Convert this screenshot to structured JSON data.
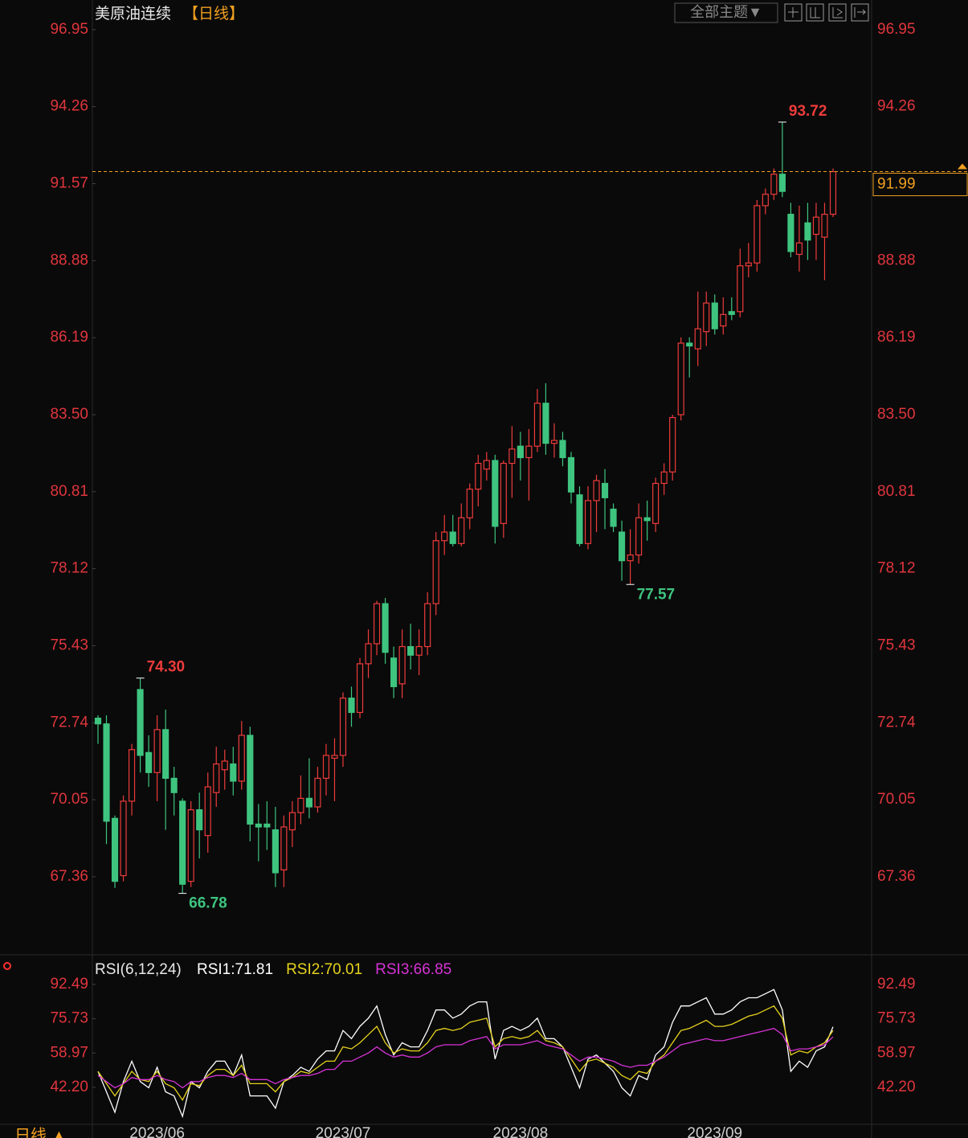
{
  "chart_data": [
    {
      "type": "candlestick",
      "title": "美原油连续",
      "period": "【日线】",
      "categories": [
        null,
        null,
        null,
        null,
        null,
        null,
        null,
        "2023/06",
        null,
        null,
        null,
        null,
        null,
        null,
        null,
        null,
        null,
        null,
        null,
        null,
        null,
        null,
        null,
        null,
        null,
        null,
        null,
        null,
        null,
        "2023/07",
        null,
        null,
        null,
        null,
        null,
        null,
        null,
        null,
        null,
        null,
        null,
        null,
        null,
        null,
        null,
        null,
        null,
        null,
        null,
        null,
        "2023/08",
        null,
        null,
        null,
        null,
        null,
        null,
        null,
        null,
        null,
        null,
        null,
        null,
        null,
        null,
        null,
        null,
        null,
        null,
        null,
        null,
        null,
        null,
        "2023/09",
        null,
        null,
        null,
        null,
        null,
        null,
        null,
        null,
        null,
        null,
        null,
        null,
        null,
        null
      ],
      "open": [
        72.9,
        72.7,
        69.4,
        67.4,
        70.0,
        73.9,
        71.7,
        71.0,
        72.5,
        70.8,
        70.0,
        67.2,
        69.7,
        68.8,
        70.3,
        71.1,
        71.3,
        70.7,
        72.3,
        69.2,
        69.2,
        69.0,
        67.6,
        69.0,
        69.6,
        70.1,
        69.8,
        70.8,
        71.5,
        71.6,
        73.6,
        73.1,
        74.8,
        75.5,
        76.9,
        75.0,
        74.1,
        75.4,
        75.1,
        75.4,
        76.9,
        79.1,
        79.4,
        79.0,
        79.9,
        80.9,
        81.6,
        81.9,
        79.7,
        81.8,
        82.4,
        82.0,
        82.4,
        83.9,
        82.5,
        82.6,
        82.0,
        80.7,
        79.0,
        80.5,
        81.1,
        80.2,
        79.4,
        78.4,
        78.6,
        79.9,
        79.7,
        81.1,
        81.5,
        83.5,
        86.0,
        85.8,
        86.4,
        87.4,
        86.6,
        87.1,
        87.1,
        88.7,
        88.8,
        90.8,
        91.2,
        91.9,
        90.5,
        89.1,
        90.2,
        89.8,
        89.7,
        90.5
      ],
      "high": [
        73.0,
        73.0,
        69.5,
        70.2,
        72.0,
        74.3,
        72.3,
        73.0,
        73.2,
        71.2,
        70.1,
        70.0,
        70.3,
        71.0,
        71.9,
        71.8,
        71.9,
        72.8,
        72.6,
        69.9,
        70.0,
        69.8,
        69.5,
        70.0,
        70.9,
        71.5,
        71.2,
        72.0,
        72.2,
        73.8,
        74.0,
        75.0,
        76.0,
        77.0,
        77.1,
        75.4,
        76.0,
        76.2,
        76.0,
        77.3,
        79.4,
        80.0,
        80.0,
        80.4,
        81.1,
        82.1,
        82.2,
        82.1,
        81.9,
        83.1,
        82.9,
        83.0,
        84.4,
        84.6,
        83.2,
        82.9,
        82.2,
        81.0,
        81.0,
        81.4,
        81.6,
        80.4,
        79.8,
        79.5,
        80.4,
        80.5,
        81.3,
        81.8,
        83.5,
        86.2,
        86.2,
        87.8,
        87.8,
        87.7,
        87.6,
        87.6,
        89.3,
        89.5,
        91.0,
        91.4,
        92.1,
        93.72,
        90.9,
        90.8,
        90.9,
        90.9,
        90.9,
        92.1
      ],
      "low": [
        72.0,
        68.5,
        66.97,
        67.2,
        69.5,
        71.0,
        70.5,
        70.0,
        69.0,
        69.5,
        66.78,
        67.0,
        68.0,
        68.2,
        69.8,
        70.4,
        70.2,
        70.4,
        68.6,
        67.9,
        68.3,
        67.0,
        67.0,
        68.4,
        69.2,
        69.4,
        69.6,
        70.2,
        70.0,
        71.2,
        72.6,
        72.9,
        74.3,
        75.1,
        74.8,
        73.6,
        73.6,
        74.6,
        74.4,
        75.1,
        76.5,
        78.6,
        78.9,
        78.9,
        79.5,
        80.3,
        81.2,
        79.0,
        79.2,
        80.6,
        81.2,
        80.5,
        82.2,
        82.1,
        82.0,
        81.7,
        80.4,
        78.9,
        78.8,
        79.4,
        79.5,
        79.4,
        77.7,
        77.57,
        78.3,
        79.1,
        79.4,
        80.7,
        81.2,
        83.3,
        84.8,
        85.2,
        85.9,
        86.3,
        86.3,
        86.8,
        86.9,
        88.3,
        88.5,
        90.5,
        91.0,
        91.1,
        89.0,
        88.5,
        88.9,
        88.9,
        88.2,
        90.4
      ],
      "close": [
        72.7,
        69.3,
        67.2,
        70.0,
        71.8,
        71.6,
        71.0,
        72.5,
        70.8,
        70.3,
        67.1,
        69.7,
        69.0,
        70.5,
        71.3,
        71.4,
        70.7,
        72.3,
        69.2,
        69.1,
        69.1,
        67.5,
        69.1,
        69.6,
        70.1,
        69.8,
        70.8,
        71.6,
        71.6,
        73.6,
        73.1,
        74.8,
        75.5,
        76.9,
        75.2,
        74.0,
        75.4,
        75.1,
        75.4,
        76.9,
        79.1,
        79.4,
        79.0,
        79.9,
        80.9,
        81.8,
        81.9,
        79.6,
        81.8,
        82.3,
        82.0,
        82.4,
        83.9,
        82.5,
        82.6,
        82.0,
        80.8,
        79.0,
        80.5,
        81.2,
        80.6,
        79.6,
        78.4,
        78.6,
        79.9,
        79.8,
        81.1,
        81.5,
        83.4,
        86.0,
        85.9,
        86.5,
        87.4,
        86.5,
        87.0,
        87.0,
        88.7,
        88.8,
        90.8,
        91.2,
        91.9,
        91.3,
        89.2,
        89.5,
        89.6,
        90.4,
        90.5,
        91.99
      ],
      "up_color": "#ee3b3b",
      "down_color": "#3ec47f",
      "annotations": [
        {
          "value": 93.72,
          "label": "93.72",
          "kind": "high"
        },
        {
          "value": 74.3,
          "label": "74.30",
          "kind": "high"
        },
        {
          "value": 66.78,
          "label": "66.78",
          "kind": "low"
        },
        {
          "value": 77.57,
          "label": "77.57",
          "kind": "low"
        }
      ],
      "last_price": {
        "value": 91.99,
        "label": "91.99"
      },
      "ylim": [
        64.72,
        97.76
      ],
      "yticks": [
        96.95,
        94.26,
        91.57,
        88.88,
        86.19,
        {
          "value": 83.5,
          "label": "83.50"
        },
        80.81,
        78.12,
        75.43,
        72.74,
        70.05,
        67.36
      ]
    },
    {
      "type": "line",
      "title": "RSI(6,12,24)",
      "series": [
        {
          "name": "RSI1:71.81",
          "color": "#ffffff",
          "values": [
            50,
            40,
            30,
            45,
            55,
            45,
            42,
            52,
            40,
            38,
            28,
            45,
            42,
            50,
            55,
            55,
            48,
            58,
            38,
            38,
            38,
            32,
            45,
            48,
            52,
            50,
            56,
            60,
            60,
            70,
            66,
            72,
            76,
            82,
            68,
            58,
            64,
            62,
            62,
            70,
            80,
            80,
            76,
            78,
            82,
            84,
            84,
            56,
            70,
            72,
            70,
            72,
            76,
            66,
            66,
            62,
            52,
            42,
            56,
            58,
            54,
            50,
            42,
            38,
            48,
            46,
            58,
            62,
            74,
            82,
            82,
            84,
            86,
            78,
            78,
            80,
            84,
            86,
            86,
            88,
            90,
            80,
            50,
            55,
            52,
            60,
            62,
            71.81
          ]
        },
        {
          "name": "RSI2:70.01",
          "color": "#e6d21e",
          "values": [
            50,
            44,
            38,
            44,
            50,
            46,
            45,
            50,
            44,
            42,
            36,
            44,
            43,
            48,
            51,
            51,
            48,
            53,
            44,
            44,
            44,
            40,
            45,
            47,
            50,
            49,
            52,
            55,
            55,
            62,
            61,
            64,
            68,
            72,
            64,
            59,
            61,
            60,
            60,
            64,
            70,
            71,
            70,
            71,
            74,
            75,
            76,
            62,
            66,
            67,
            66,
            67,
            70,
            65,
            64,
            62,
            56,
            50,
            55,
            56,
            54,
            52,
            48,
            46,
            50,
            49,
            55,
            58,
            64,
            70,
            71,
            73,
            75,
            72,
            72,
            73,
            75,
            77,
            78,
            80,
            82,
            76,
            58,
            60,
            59,
            62,
            64,
            70.01
          ]
        },
        {
          "name": "RSI3:66.85",
          "color": "#d633d6",
          "values": [
            48,
            45,
            42,
            44,
            47,
            46,
            46,
            48,
            46,
            45,
            42,
            45,
            45,
            47,
            48,
            48,
            47,
            49,
            46,
            46,
            46,
            44,
            46,
            47,
            48,
            48,
            49,
            51,
            51,
            55,
            55,
            57,
            59,
            62,
            59,
            57,
            58,
            57,
            57,
            59,
            62,
            63,
            63,
            63,
            65,
            66,
            67,
            61,
            63,
            63,
            63,
            64,
            65,
            63,
            62,
            61,
            58,
            55,
            57,
            57,
            56,
            55,
            53,
            52,
            53,
            53,
            55,
            57,
            60,
            63,
            64,
            65,
            66,
            65,
            65,
            66,
            67,
            68,
            69,
            70,
            71,
            68,
            60,
            61,
            61,
            62,
            63,
            66.85
          ]
        }
      ],
      "ylim": [
        24.5,
        96.4
      ],
      "yticks": [
        92.49,
        75.73,
        58.97,
        {
          "value": 42.2,
          "label": "42.20"
        }
      ]
    }
  ],
  "ui": {
    "theme_button": "全部主题▼",
    "period_tab": "日线 ▲"
  }
}
